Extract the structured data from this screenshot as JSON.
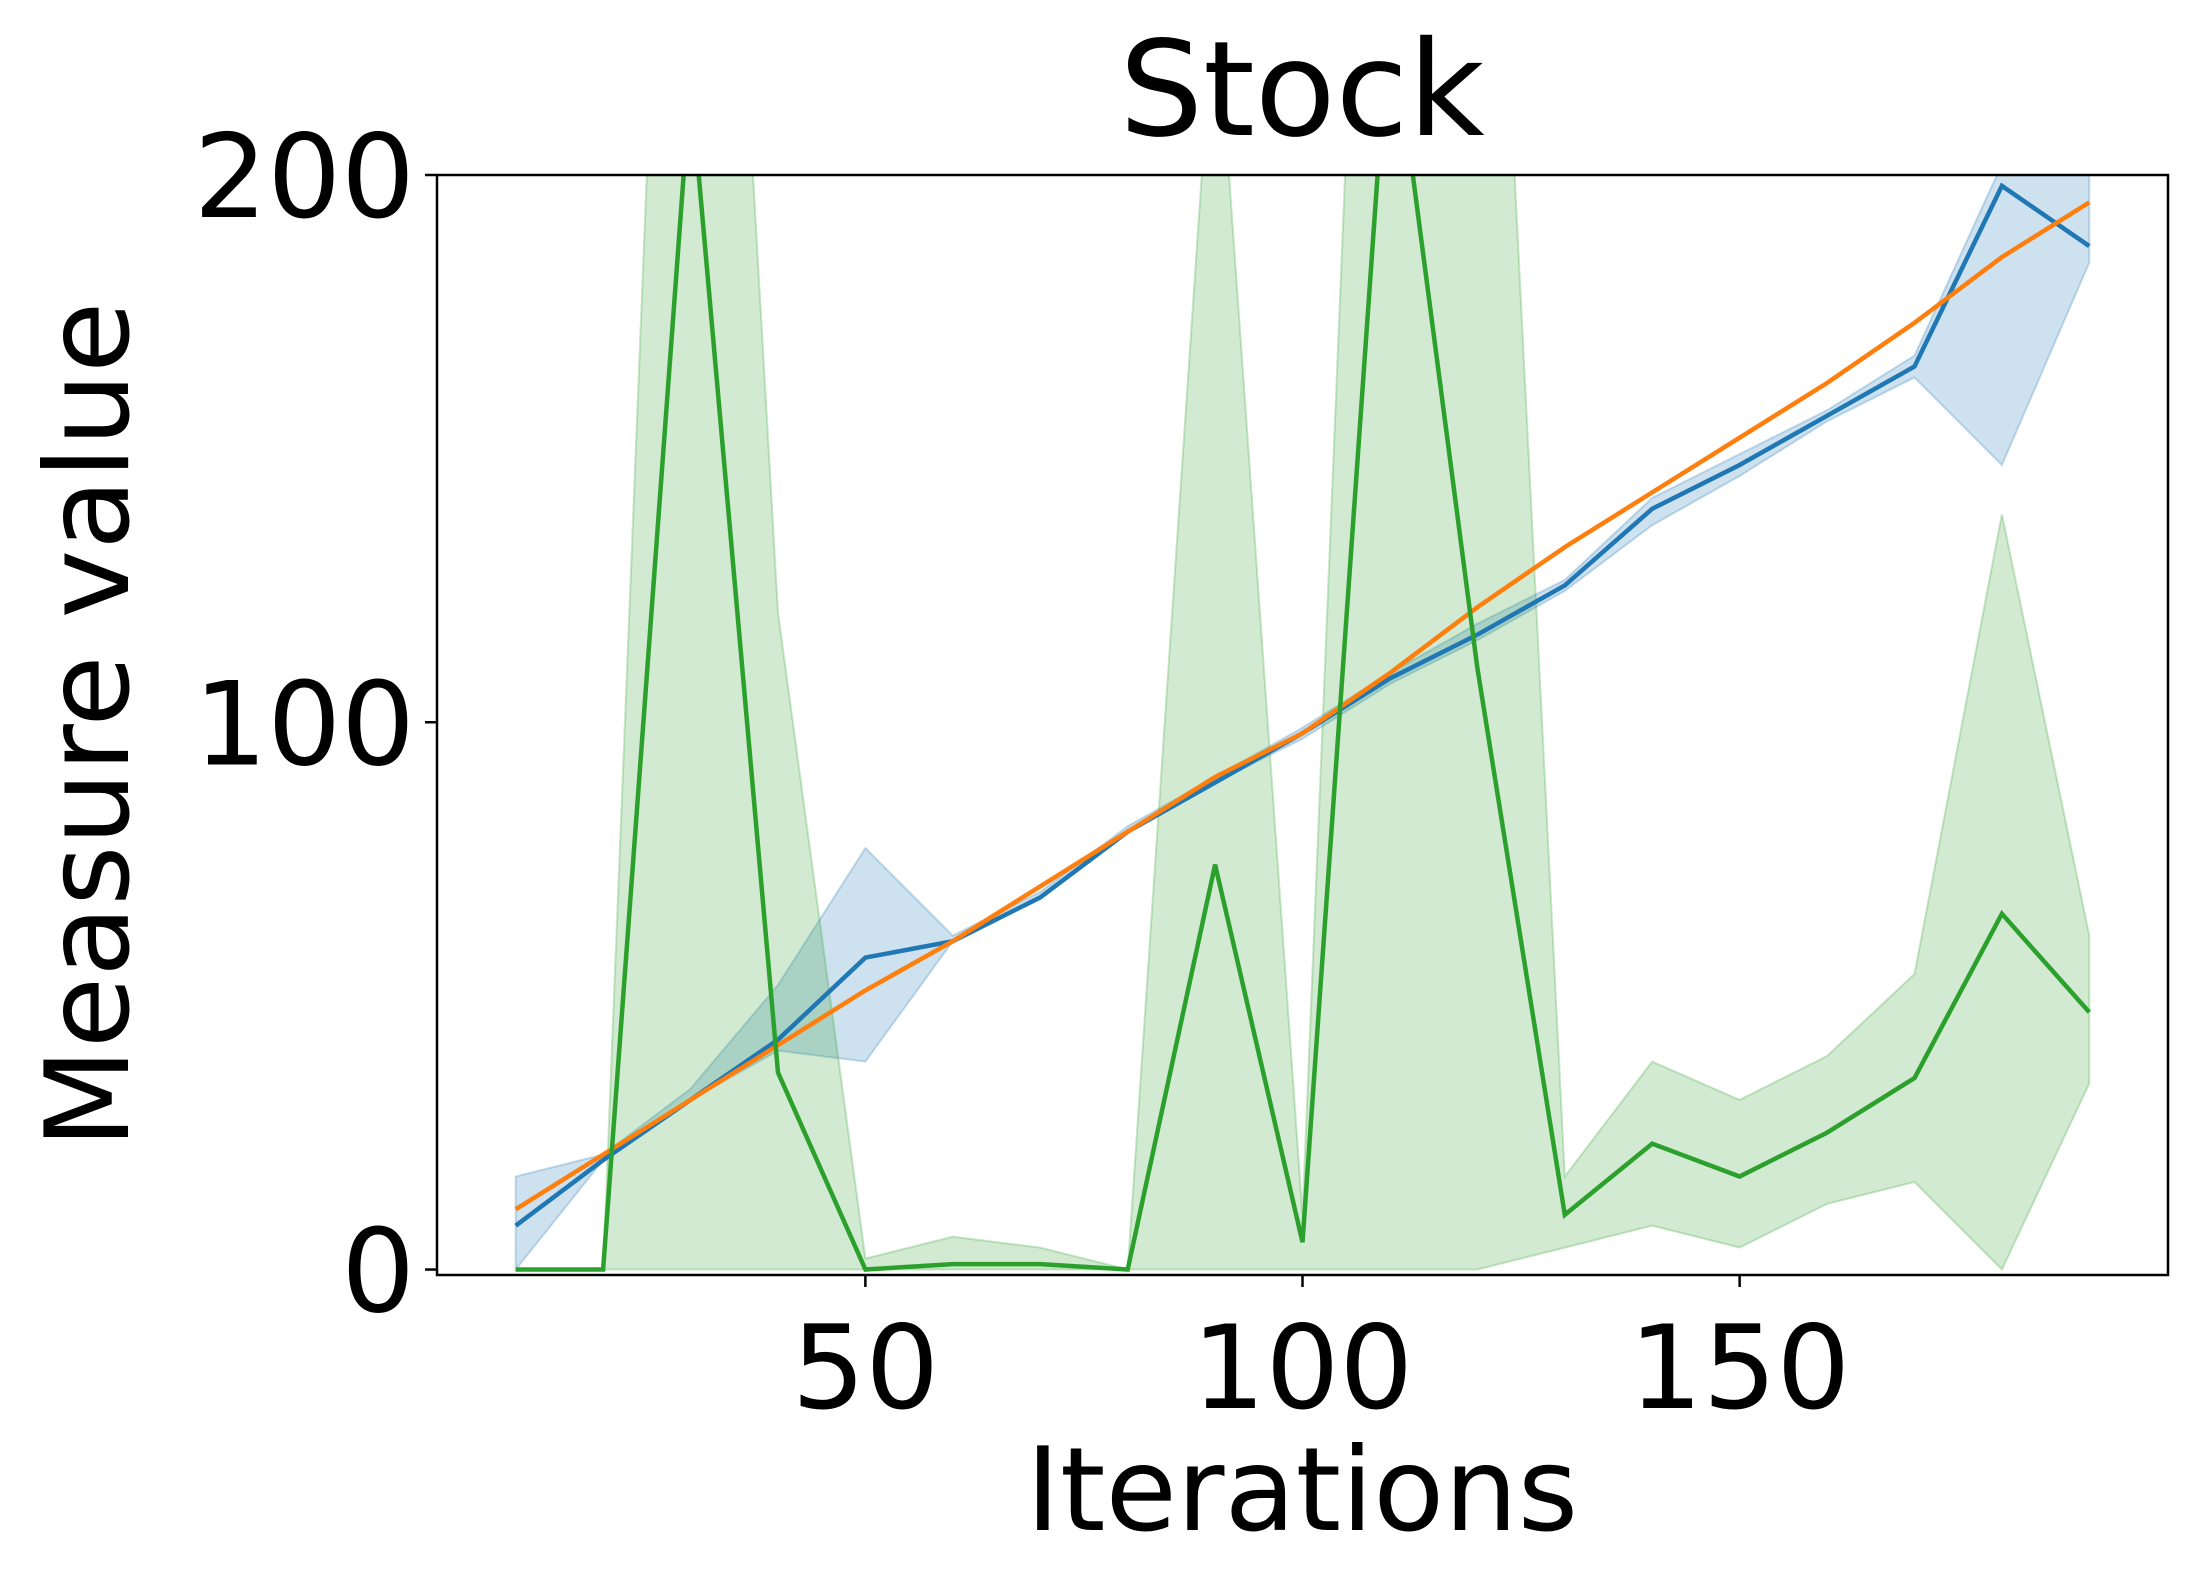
{
  "chart_data": {
    "type": "line",
    "title": "Stock",
    "xlabel": "Iterations",
    "ylabel": "Measure value",
    "xlim": [
      1,
      199
    ],
    "ylim": [
      -1,
      200
    ],
    "xticks": [
      50,
      100,
      150
    ],
    "yticks": [
      0,
      100,
      200
    ],
    "grid": false,
    "legend": "none",
    "x": [
      10,
      20,
      30,
      40,
      50,
      60,
      70,
      80,
      90,
      100,
      110,
      120,
      130,
      140,
      150,
      160,
      170,
      180,
      190
    ],
    "series": [
      {
        "color": "#1f77b4",
        "band_color": "#1f77b4",
        "values": [
          8,
          20,
          31,
          42,
          57,
          60,
          68,
          80,
          89,
          98,
          108,
          116,
          125,
          139,
          147,
          156,
          165,
          198,
          187
        ],
        "band_lower": [
          0,
          20,
          31,
          40,
          38,
          60,
          68,
          80,
          89,
          97,
          107,
          115,
          124,
          136,
          145,
          155,
          163,
          147,
          184
        ],
        "band_upper": [
          17,
          21,
          33,
          52,
          77,
          61,
          69,
          81,
          90,
          99,
          109,
          118,
          126,
          141,
          149,
          157,
          167,
          202,
          200
        ]
      },
      {
        "color": "#ff7f0e",
        "values": [
          11,
          21,
          31,
          41,
          51,
          60,
          70,
          80,
          90,
          98,
          109,
          121,
          132,
          142,
          152,
          162,
          173,
          185,
          195
        ]
      },
      {
        "color": "#2ca02c",
        "band_color": "#2ca02c",
        "values": [
          0,
          0,
          217,
          36,
          0,
          1,
          1,
          0,
          74,
          5,
          232,
          110,
          10,
          23,
          17,
          25,
          35,
          65,
          47
        ],
        "band_lower": [
          0,
          0,
          0,
          0,
          0,
          0,
          0,
          0,
          0,
          0,
          0,
          0,
          4,
          8,
          4,
          12,
          16,
          0,
          34
        ],
        "band_upper": [
          0,
          0,
          400,
          120,
          2,
          6,
          4,
          0,
          236,
          10,
          400,
          336,
          17,
          38,
          31,
          39,
          54,
          138,
          61
        ]
      }
    ]
  }
}
